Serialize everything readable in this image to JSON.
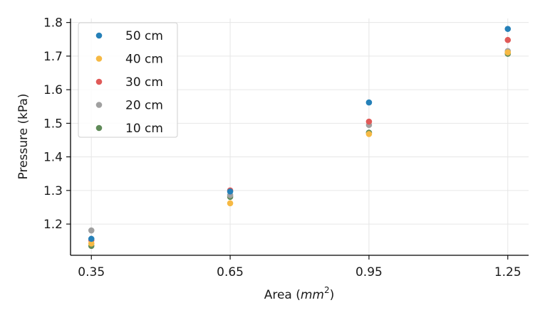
{
  "chart_data": {
    "type": "scatter",
    "title": "",
    "xlabel": "Area (",
    "xlabel_unit": "mm",
    "xlabel_exp": "2",
    "xlabel_close": ")",
    "ylabel": "Pressure (kPa)",
    "x": [
      0.35,
      0.65,
      0.95,
      1.25
    ],
    "xticks": [
      "0.35",
      "0.65",
      "0.95",
      "1.25"
    ],
    "yticks": [
      "1.2",
      "1.3",
      "1.4",
      "1.5",
      "1.6",
      "1.7",
      "1.8"
    ],
    "xlim": [
      0.305,
      1.295
    ],
    "ylim": [
      1.107,
      1.812
    ],
    "grid": true,
    "legend_position": "top-left",
    "series": [
      {
        "name": "50 cm",
        "color": "#2580b8",
        "values": [
          1.156,
          1.297,
          1.562,
          1.781
        ]
      },
      {
        "name": "40 cm",
        "color": "#f6b944",
        "values": [
          1.142,
          1.262,
          1.468,
          1.711
        ]
      },
      {
        "name": "30 cm",
        "color": "#e05a58",
        "values": [
          1.152,
          1.3,
          1.505,
          1.748
        ]
      },
      {
        "name": "20 cm",
        "color": "#a0a0a0",
        "values": [
          1.181,
          1.286,
          1.495,
          1.715
        ]
      },
      {
        "name": "10 cm",
        "color": "#5f8a58",
        "values": [
          1.135,
          1.281,
          1.472,
          1.707
        ]
      }
    ]
  }
}
